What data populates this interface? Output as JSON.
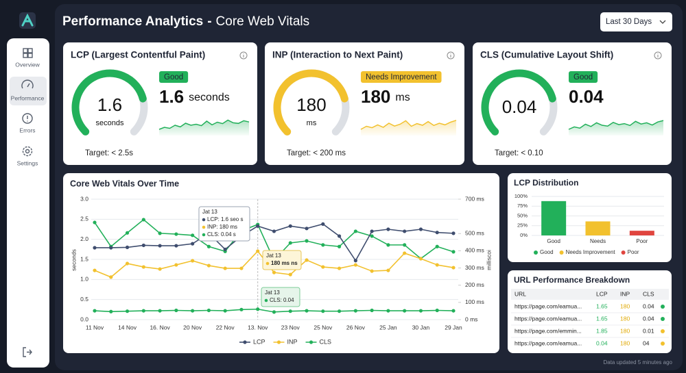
{
  "sidebar": {
    "items": [
      "Overview",
      "Performance",
      "Errors",
      "Settings"
    ],
    "active": 1
  },
  "header": {
    "title": "Performance Analytics",
    "dash": "-",
    "subtitle": "Core Web Vitals",
    "range": "Last 30 Days"
  },
  "kpis": [
    {
      "title": "LCP (Largest Contentful Paint)",
      "value": "1.6",
      "unit": "seconds",
      "status": "Good",
      "color": "#22b05a",
      "target": "Target: < 2.5s",
      "trend": [
        3,
        4,
        3.5,
        5,
        4.2,
        6,
        5,
        5.5,
        4.8,
        7,
        5.2,
        6.5,
        5.8,
        7.5,
        6.2,
        5.9,
        7.2,
        6.6
      ]
    },
    {
      "title": "INP (Interaction to Next Paint)",
      "value": "180",
      "unit": "ms",
      "status": "Needs Improvement",
      "color": "#f2c12e",
      "target": "Target: < 200 ms",
      "trend": [
        3,
        4.5,
        3.8,
        5.2,
        4,
        6,
        4.6,
        5.5,
        7.2,
        4.5,
        5.8,
        5,
        6.8,
        4.9,
        6,
        5.2,
        6.5,
        7.4
      ]
    },
    {
      "title": "CLS (Cumulative Layout Shift)",
      "value": "0.04",
      "status": "Good",
      "color": "#22b05a",
      "target": "Target: < 0.10",
      "trend": [
        3,
        4.2,
        3.6,
        5.5,
        4.4,
        6.2,
        5,
        4.6,
        6.4,
        5.3,
        5.8,
        4.9,
        6.9,
        5.6,
        6.2,
        5.1,
        6.6,
        7.3
      ]
    }
  ],
  "chart_data": [
    {
      "type": "line",
      "title": "Core Web Vitals Over Time",
      "categories": [
        "11 Nov",
        null,
        "14 Nov",
        null,
        "16. Nov",
        null,
        "20 Nov",
        null,
        "22 Nov",
        null,
        "13. Nov",
        null,
        "23 Nov",
        null,
        "25 Nov",
        null,
        "26 Nov",
        null,
        "25 Jan",
        null,
        "30 Jan",
        null,
        "29 Jan"
      ],
      "ylabel": "seconds",
      "y2label": "milliscoi",
      "ylim": [
        0,
        3
      ],
      "yticks": [
        {
          "value": 0,
          "label": "0.0"
        },
        0.5,
        {
          "value": 1,
          "label": "1.0"
        },
        1.5,
        {
          "value": 2,
          "label": "2.0"
        },
        2.5,
        {
          "value": 3,
          "label": "3.0"
        }
      ],
      "y2lim": [
        0,
        700
      ],
      "y2ticks": [
        {
          "value": 0,
          "label": "0 ms"
        },
        {
          "value": 100,
          "label": "100 ms"
        },
        {
          "value": 200,
          "label": "200 ms"
        },
        {
          "value": 300,
          "label": "300 ms"
        },
        {
          "value": 400,
          "label": "400 ms"
        },
        {
          "value": 500,
          "label": "500 ms"
        },
        {
          "value": 700,
          "label": "700 ms"
        }
      ],
      "grid": true,
      "series": [
        {
          "name": "LCP",
          "color": "#3f4d6e",
          "values": [
            1.79,
            1.79,
            1.8,
            1.85,
            1.84,
            1.84,
            1.89,
            2.15,
            1.75,
            2.08,
            2.33,
            2.2,
            2.33,
            2.27,
            2.38,
            2.08,
            1.47,
            2.2,
            2.25,
            2.2,
            2.25,
            2.17,
            2.15
          ]
        },
        {
          "name": "INP",
          "color": "#f2c12e",
          "axis": "y2",
          "values": [
            286,
            247,
            326,
            306,
            294,
            318,
            342,
            314,
            298,
            298,
            398,
            274,
            262,
            346,
            306,
            298,
            318,
            282,
            286,
            386,
            354,
            318,
            302
          ]
        },
        {
          "name": "CLS",
          "color": "#22b05a",
          "values": [
            0.22,
            0.2,
            0.21,
            0.22,
            0.22,
            0.23,
            0.22,
            0.23,
            0.22,
            0.25,
            0.26,
            0.19,
            0.21,
            0.22,
            0.21,
            0.21,
            0.22,
            0.23,
            0.22,
            0.22,
            0.22,
            0.23,
            0.22
          ]
        },
        {
          "color": "#22b05a",
          "values": [
            2.42,
            1.82,
            2.16,
            2.49,
            2.15,
            2.13,
            2.1,
            1.82,
            1.7,
            2.21,
            2.37,
            1.48,
            1.91,
            1.96,
            1.86,
            1.82,
            2.2,
            2.08,
            1.86,
            1.86,
            1.52,
            1.82,
            1.69
          ]
        }
      ],
      "annotations": [
        {
          "lines": [
            "Jat 13",
            "LCP: 1.6 seo s",
            "INP: 180 ms",
            "CLS: 0.04 s"
          ]
        },
        {
          "lines": [
            "Jat 13",
            "180 ms ns"
          ]
        },
        {
          "lines": [
            "Jat 13",
            "CLS: 0.04"
          ]
        }
      ]
    },
    {
      "type": "bar",
      "title": "LCP Distribution",
      "categories": [
        "Good",
        "Needs",
        "Poor"
      ],
      "values": [
        88,
        36,
        12
      ],
      "colors": [
        "#22b05a",
        "#f2c12e",
        "#e0453f"
      ],
      "legend": [
        "Good",
        "Needs Improvement",
        "Poor"
      ],
      "ylim": [
        0,
        100
      ],
      "yticks": [
        {
          "value": 0,
          "label": "0%"
        },
        {
          "value": 25,
          "label": "25%"
        },
        {
          "value": 50,
          "label": "50%"
        },
        {
          "value": 75,
          "label": "75%"
        },
        {
          "value": 100,
          "label": "100%"
        }
      ],
      "grid": true
    }
  ],
  "table": {
    "title": "URL Performance Breakdown",
    "headers": [
      "URL",
      "LCP",
      "INP",
      "CLS"
    ],
    "rows": [
      [
        "https://page.com/eamua...",
        "1.65",
        "180",
        "0.04"
      ],
      [
        "https://page.com/eamua...",
        "1.65",
        "180",
        "0.04"
      ],
      [
        "https://page.com/emmin...",
        "1.85",
        "180",
        "0.01"
      ],
      [
        "https://page.com/eamua...",
        "0.04",
        "180",
        "04"
      ]
    ],
    "status_colors": [
      "#22b05a",
      "#22b05a",
      "#f2c12e",
      "#f2c12e"
    ]
  },
  "footer": "Data updated 5 minutes ago"
}
